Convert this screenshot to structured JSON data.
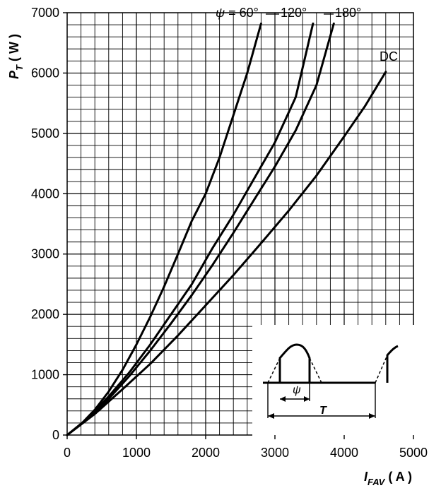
{
  "chart_data": {
    "type": "line",
    "xlabel": {
      "main": "I",
      "sub": "FAV",
      "unit": " ( A )"
    },
    "ylabel": {
      "main": "P",
      "sub": "T",
      "unit": " ( W )"
    },
    "xlim": [
      0,
      5000
    ],
    "ylim": [
      0,
      7000
    ],
    "x_ticks": [
      0,
      1000,
      2000,
      3000,
      4000,
      5000
    ],
    "y_ticks": [
      0,
      1000,
      2000,
      3000,
      4000,
      5000,
      6000,
      7000
    ],
    "x_tick_labels": [
      "0",
      "1000",
      "2000",
      "3000",
      "4000",
      "5000"
    ],
    "y_tick_labels": [
      "0",
      "1000",
      "2000",
      "3000",
      "4000",
      "5000",
      "6000",
      "7000"
    ],
    "grid": true,
    "series": [
      {
        "name": "60°",
        "label_text": "ψ = 60°",
        "points": [
          [
            0,
            0
          ],
          [
            200,
            180
          ],
          [
            400,
            420
          ],
          [
            600,
            720
          ],
          [
            800,
            1080
          ],
          [
            1000,
            1500
          ],
          [
            1200,
            1960
          ],
          [
            1400,
            2460
          ],
          [
            1600,
            3000
          ],
          [
            1800,
            3550
          ],
          [
            2000,
            4000
          ],
          [
            2200,
            4600
          ],
          [
            2400,
            5300
          ],
          [
            2600,
            6000
          ],
          [
            2800,
            6820
          ]
        ]
      },
      {
        "name": "120°",
        "label_text": "120°",
        "points": [
          [
            0,
            0
          ],
          [
            300,
            280
          ],
          [
            600,
            640
          ],
          [
            900,
            1040
          ],
          [
            1200,
            1500
          ],
          [
            1500,
            2000
          ],
          [
            1800,
            2500
          ],
          [
            2100,
            3100
          ],
          [
            2400,
            3650
          ],
          [
            2700,
            4250
          ],
          [
            3000,
            4850
          ],
          [
            3300,
            5600
          ],
          [
            3550,
            6820
          ]
        ]
      },
      {
        "name": "180°",
        "label_text": "180°",
        "points": [
          [
            0,
            0
          ],
          [
            300,
            270
          ],
          [
            600,
            600
          ],
          [
            900,
            980
          ],
          [
            1200,
            1400
          ],
          [
            1500,
            1850
          ],
          [
            1800,
            2320
          ],
          [
            2100,
            2820
          ],
          [
            2400,
            3350
          ],
          [
            2700,
            3900
          ],
          [
            3000,
            4450
          ],
          [
            3300,
            5050
          ],
          [
            3600,
            5800
          ],
          [
            3850,
            6820
          ]
        ]
      },
      {
        "name": "DC",
        "label_text": "DC",
        "points": [
          [
            0,
            0
          ],
          [
            400,
            350
          ],
          [
            800,
            760
          ],
          [
            1200,
            1180
          ],
          [
            1600,
            1650
          ],
          [
            2000,
            2150
          ],
          [
            2400,
            2650
          ],
          [
            2800,
            3180
          ],
          [
            3200,
            3720
          ],
          [
            3600,
            4300
          ],
          [
            4000,
            4950
          ],
          [
            4300,
            5450
          ],
          [
            4600,
            6020
          ]
        ]
      }
    ],
    "inset": {
      "psi_label": "ψ",
      "t_label": "T"
    }
  }
}
